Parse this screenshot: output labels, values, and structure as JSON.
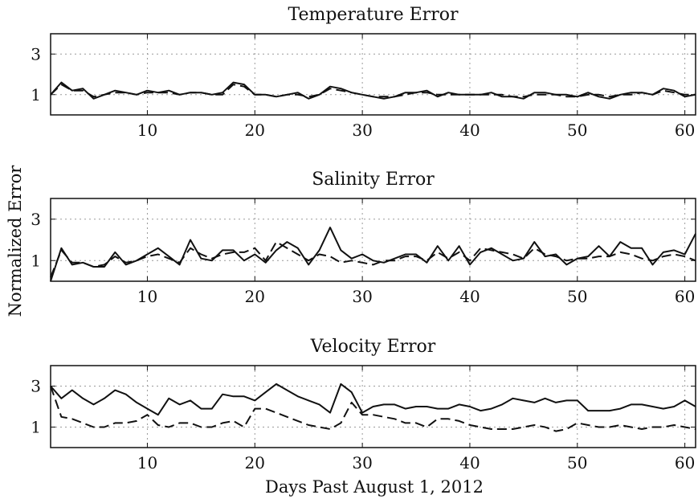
{
  "figure": {
    "ylabel": "Normalized Error",
    "xlabel": "Days Past August 1, 2012"
  },
  "chart_data": [
    {
      "type": "line",
      "title": "Temperature Error",
      "xlim": [
        1,
        61
      ],
      "ylim": [
        0,
        4
      ],
      "xticks": [
        10,
        20,
        30,
        40,
        50,
        60
      ],
      "yticks": [
        1,
        3
      ],
      "grid": true,
      "x": [
        1,
        2,
        3,
        4,
        5,
        6,
        7,
        8,
        9,
        10,
        11,
        12,
        13,
        14,
        15,
        16,
        17,
        18,
        19,
        20,
        21,
        22,
        23,
        24,
        25,
        26,
        27,
        28,
        29,
        30,
        31,
        32,
        33,
        34,
        35,
        36,
        37,
        38,
        39,
        40,
        41,
        42,
        43,
        44,
        45,
        46,
        47,
        48,
        49,
        50,
        51,
        52,
        53,
        54,
        55,
        56,
        57,
        58,
        59,
        60,
        61
      ],
      "series": [
        {
          "style": "solid",
          "values": [
            1.0,
            1.6,
            1.2,
            1.3,
            0.8,
            1.0,
            1.2,
            1.1,
            1.0,
            1.2,
            1.1,
            1.2,
            1.0,
            1.1,
            1.1,
            1.0,
            1.1,
            1.6,
            1.5,
            1.0,
            1.0,
            0.9,
            1.0,
            1.1,
            0.8,
            1.0,
            1.4,
            1.3,
            1.1,
            1.0,
            0.9,
            0.8,
            0.9,
            1.1,
            1.1,
            1.2,
            0.9,
            1.1,
            1.0,
            1.0,
            1.0,
            1.1,
            0.9,
            0.9,
            0.8,
            1.1,
            1.1,
            1.0,
            1.0,
            0.9,
            1.1,
            0.9,
            0.8,
            1.0,
            1.1,
            1.1,
            1.0,
            1.3,
            1.2,
            0.9,
            1.0
          ]
        },
        {
          "style": "dashed",
          "values": [
            1.0,
            1.5,
            1.2,
            1.2,
            0.9,
            1.0,
            1.1,
            1.1,
            1.0,
            1.1,
            1.1,
            1.1,
            1.0,
            1.1,
            1.1,
            1.0,
            1.0,
            1.5,
            1.4,
            1.0,
            1.0,
            0.9,
            1.0,
            1.0,
            0.9,
            1.0,
            1.3,
            1.2,
            1.1,
            1.0,
            0.9,
            0.9,
            0.9,
            1.0,
            1.1,
            1.1,
            1.0,
            1.0,
            1.0,
            1.0,
            1.0,
            1.0,
            1.0,
            0.9,
            0.9,
            1.0,
            1.0,
            1.0,
            0.9,
            0.9,
            1.0,
            1.0,
            0.9,
            1.0,
            1.0,
            1.1,
            1.0,
            1.2,
            1.1,
            1.0,
            1.0
          ]
        }
      ]
    },
    {
      "type": "line",
      "title": "Salinity Error",
      "xlim": [
        1,
        61
      ],
      "ylim": [
        0,
        4
      ],
      "xticks": [
        10,
        20,
        30,
        40,
        50,
        60
      ],
      "yticks": [
        1,
        3
      ],
      "grid": true,
      "x": [
        1,
        2,
        3,
        4,
        5,
        6,
        7,
        8,
        9,
        10,
        11,
        12,
        13,
        14,
        15,
        16,
        17,
        18,
        19,
        20,
        21,
        22,
        23,
        24,
        25,
        26,
        27,
        28,
        29,
        30,
        31,
        32,
        33,
        34,
        35,
        36,
        37,
        38,
        39,
        40,
        41,
        42,
        43,
        44,
        45,
        46,
        47,
        48,
        49,
        50,
        51,
        52,
        53,
        54,
        55,
        56,
        57,
        58,
        59,
        60,
        61
      ],
      "series": [
        {
          "style": "solid",
          "values": [
            0.0,
            1.6,
            0.8,
            0.9,
            0.7,
            0.7,
            1.4,
            0.8,
            1.0,
            1.3,
            1.6,
            1.2,
            0.8,
            2.0,
            1.1,
            1.0,
            1.5,
            1.5,
            1.0,
            1.3,
            0.9,
            1.5,
            1.9,
            1.6,
            0.8,
            1.5,
            2.6,
            1.5,
            1.1,
            1.3,
            1.0,
            0.9,
            1.1,
            1.3,
            1.3,
            0.9,
            1.7,
            1.0,
            1.7,
            0.8,
            1.4,
            1.6,
            1.3,
            1.0,
            1.1,
            1.9,
            1.2,
            1.3,
            0.8,
            1.1,
            1.2,
            1.7,
            1.2,
            1.9,
            1.6,
            1.6,
            0.8,
            1.4,
            1.5,
            1.3,
            2.3
          ]
        },
        {
          "style": "dashed",
          "values": [
            0.2,
            1.5,
            0.9,
            0.9,
            0.7,
            0.8,
            1.2,
            0.9,
            1.0,
            1.2,
            1.3,
            1.1,
            0.9,
            1.6,
            1.3,
            1.1,
            1.3,
            1.4,
            1.4,
            1.6,
            1.0,
            1.9,
            1.6,
            1.3,
            1.0,
            1.3,
            1.2,
            0.9,
            1.0,
            0.9,
            0.8,
            1.0,
            1.0,
            1.2,
            1.2,
            1.0,
            1.4,
            1.1,
            1.4,
            1.0,
            1.6,
            1.5,
            1.4,
            1.3,
            1.1,
            1.6,
            1.3,
            1.2,
            1.0,
            1.1,
            1.1,
            1.2,
            1.2,
            1.4,
            1.3,
            1.1,
            1.0,
            1.2,
            1.3,
            1.2,
            1.0
          ]
        }
      ]
    },
    {
      "type": "line",
      "title": "Velocity Error",
      "xlim": [
        1,
        61
      ],
      "ylim": [
        0,
        4
      ],
      "xticks": [
        10,
        20,
        30,
        40,
        50,
        60
      ],
      "yticks": [
        1,
        3
      ],
      "grid": true,
      "x": [
        1,
        2,
        3,
        4,
        5,
        6,
        7,
        8,
        9,
        10,
        11,
        12,
        13,
        14,
        15,
        16,
        17,
        18,
        19,
        20,
        21,
        22,
        23,
        24,
        25,
        26,
        27,
        28,
        29,
        30,
        31,
        32,
        33,
        34,
        35,
        36,
        37,
        38,
        39,
        40,
        41,
        42,
        43,
        44,
        45,
        46,
        47,
        48,
        49,
        50,
        51,
        52,
        53,
        54,
        55,
        56,
        57,
        58,
        59,
        60,
        61
      ],
      "series": [
        {
          "style": "solid",
          "values": [
            3.0,
            2.4,
            2.8,
            2.4,
            2.1,
            2.4,
            2.8,
            2.6,
            2.2,
            1.9,
            1.6,
            2.4,
            2.1,
            2.3,
            1.9,
            1.9,
            2.6,
            2.5,
            2.5,
            2.3,
            2.7,
            3.1,
            2.8,
            2.5,
            2.3,
            2.1,
            1.7,
            3.1,
            2.7,
            1.7,
            2.0,
            2.1,
            2.1,
            1.9,
            2.0,
            2.0,
            1.9,
            1.9,
            2.1,
            2.0,
            1.8,
            1.9,
            2.1,
            2.4,
            2.3,
            2.2,
            2.4,
            2.2,
            2.3,
            2.3,
            1.8,
            1.8,
            1.8,
            1.9,
            2.1,
            2.1,
            2.0,
            1.9,
            2.0,
            2.3,
            2.0
          ]
        },
        {
          "style": "dashed",
          "values": [
            3.0,
            1.5,
            1.4,
            1.2,
            1.0,
            1.0,
            1.2,
            1.2,
            1.3,
            1.6,
            1.1,
            1.0,
            1.2,
            1.2,
            1.0,
            1.0,
            1.2,
            1.3,
            1.0,
            1.9,
            1.9,
            1.7,
            1.5,
            1.3,
            1.1,
            1.0,
            0.9,
            1.2,
            2.2,
            1.6,
            1.6,
            1.5,
            1.4,
            1.2,
            1.2,
            1.0,
            1.4,
            1.4,
            1.3,
            1.1,
            1.0,
            0.9,
            0.9,
            0.9,
            1.0,
            1.1,
            1.0,
            0.8,
            0.9,
            1.2,
            1.1,
            1.0,
            1.0,
            1.1,
            1.0,
            0.9,
            1.0,
            1.0,
            1.1,
            1.0,
            0.9
          ]
        }
      ]
    }
  ]
}
